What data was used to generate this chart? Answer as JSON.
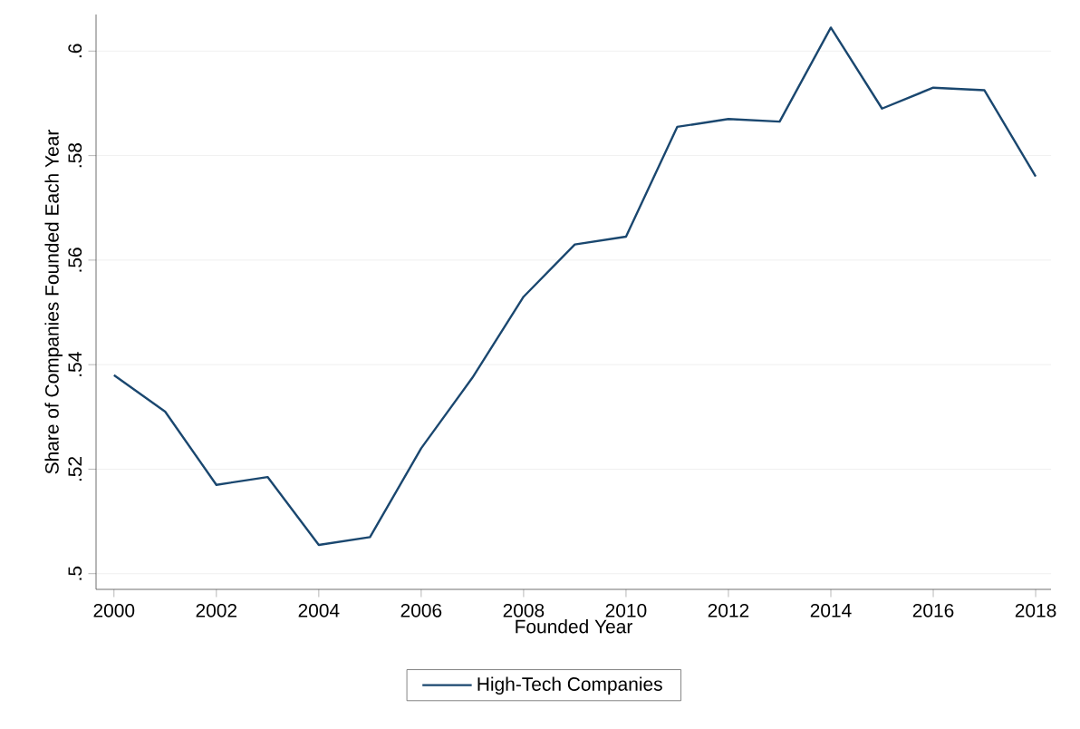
{
  "chart_data": {
    "type": "line",
    "xlabel": "Founded Year",
    "ylabel": "Share of Companies Founded Each Year",
    "x": [
      2000,
      2001,
      2002,
      2003,
      2004,
      2005,
      2006,
      2007,
      2008,
      2009,
      2010,
      2011,
      2012,
      2013,
      2014,
      2015,
      2016,
      2017,
      2018
    ],
    "series": [
      {
        "name": "High-Tech Companies",
        "color": "#1a476f",
        "values": [
          0.538,
          0.531,
          0.517,
          0.5185,
          0.5055,
          0.507,
          0.524,
          0.5375,
          0.553,
          0.563,
          0.5645,
          0.5855,
          0.587,
          0.5865,
          0.6045,
          0.589,
          0.593,
          0.5925,
          0.576
        ]
      }
    ],
    "xlim": [
      1999.65,
      2018.3
    ],
    "ylim": [
      0.497,
      0.607
    ],
    "xticks": [
      2000,
      2002,
      2004,
      2006,
      2008,
      2010,
      2012,
      2014,
      2016,
      2018
    ],
    "yticks": [
      {
        "value": 0.5,
        "label": ".5"
      },
      {
        "value": 0.52,
        "label": ".52"
      },
      {
        "value": 0.54,
        "label": ".54"
      },
      {
        "value": 0.56,
        "label": ".56"
      },
      {
        "value": 0.58,
        "label": ".58"
      },
      {
        "value": 0.6,
        "label": ".6"
      }
    ],
    "grid": "y",
    "legend": "bottom",
    "marker": "none",
    "line_style": "solid"
  }
}
